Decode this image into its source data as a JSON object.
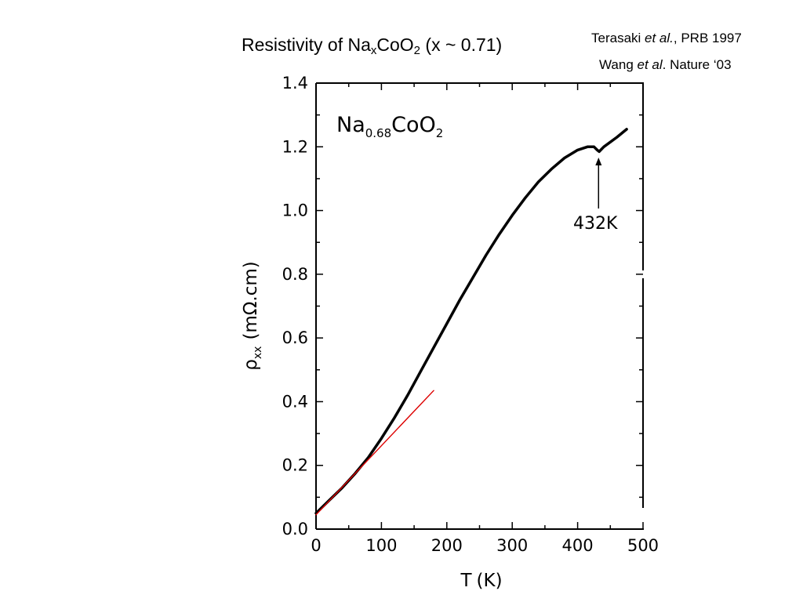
{
  "slide": {
    "title_prefix": "Resistivity of Na",
    "title_sub_x": "x",
    "title_mid": "CoO",
    "title_sub_2": "2",
    "title_suffix": " (x ~ 0.71)",
    "citation1_author": "Terasaki ",
    "citation1_etal": "et al.",
    "citation1_rest": ", PRB 1997",
    "citation2_author": "Wang ",
    "citation2_etal": "et al",
    "citation2_rest": ". Nature ‘03"
  },
  "chart_data": {
    "type": "line",
    "xlabel": "T (K)",
    "ylabel": "ρxx (mΩ.cm)",
    "ylabel_rho": "ρ",
    "ylabel_sub": "xx",
    "ylabel_units": "(mΩ.cm)",
    "xlabel_T": "T",
    "xlabel_units": "(K)",
    "xlim": [
      0,
      500
    ],
    "ylim": [
      0.0,
      1.4
    ],
    "x_ticks": [
      "0",
      "100",
      "200",
      "300",
      "400",
      "500"
    ],
    "y_ticks": [
      "0.0",
      "0.2",
      "0.4",
      "0.6",
      "0.8",
      "1.0",
      "1.2",
      "1.4"
    ],
    "grid": false,
    "label": {
      "na": "Na",
      "sub": "0.68",
      "coo": "CoO",
      "sub2": "2"
    },
    "annotation": {
      "text": "432K",
      "x": 432
    },
    "series": [
      {
        "color": "#000000",
        "points": [
          [
            0,
            0.05
          ],
          [
            20,
            0.09
          ],
          [
            40,
            0.13
          ],
          [
            60,
            0.175
          ],
          [
            80,
            0.225
          ],
          [
            100,
            0.285
          ],
          [
            120,
            0.35
          ],
          [
            140,
            0.42
          ],
          [
            160,
            0.495
          ],
          [
            180,
            0.57
          ],
          [
            200,
            0.645
          ],
          [
            220,
            0.72
          ],
          [
            240,
            0.79
          ],
          [
            260,
            0.86
          ],
          [
            280,
            0.925
          ],
          [
            300,
            0.985
          ],
          [
            320,
            1.04
          ],
          [
            340,
            1.09
          ],
          [
            360,
            1.13
          ],
          [
            380,
            1.165
          ],
          [
            400,
            1.19
          ],
          [
            415,
            1.2
          ],
          [
            425,
            1.2
          ],
          [
            430,
            1.19
          ],
          [
            433,
            1.185
          ],
          [
            440,
            1.2
          ],
          [
            460,
            1.23
          ],
          [
            475,
            1.255
          ]
        ]
      },
      {
        "color": "#dd0000",
        "points": [
          [
            0,
            0.045
          ],
          [
            180,
            0.435
          ]
        ]
      }
    ]
  }
}
